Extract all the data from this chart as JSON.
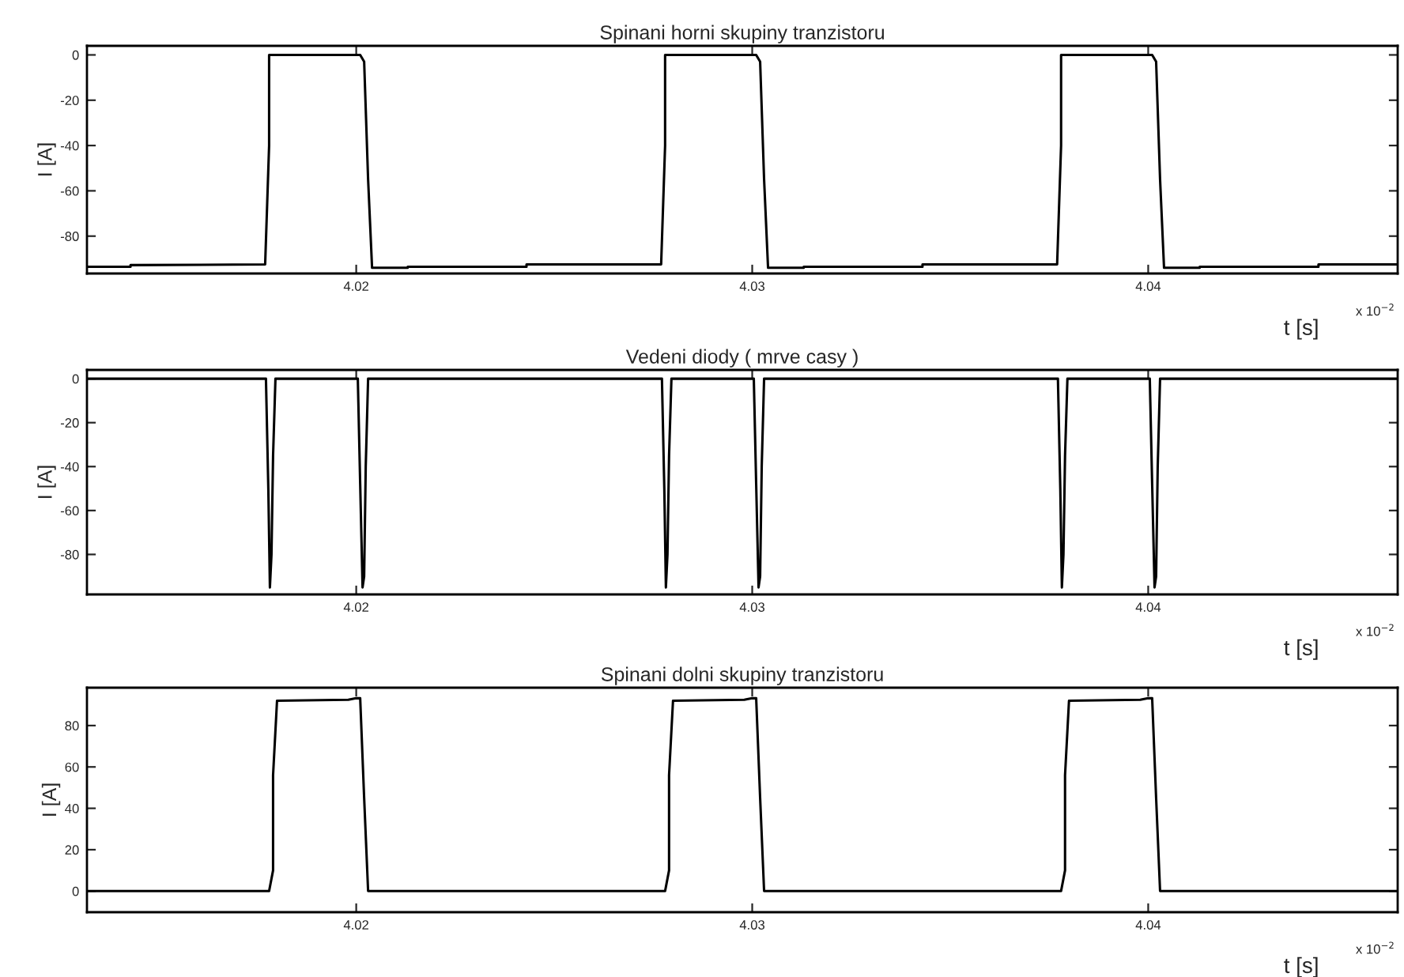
{
  "chart_data": [
    {
      "type": "line",
      "title": "Spinani horni skupiny tranzistoru",
      "xlabel": "t [s]",
      "ylabel": "I [A]",
      "annotations": [
        "x 10$^{−2}$"
      ],
      "xlim": [
        4.0132,
        4.0463
      ],
      "xticks": [
        4.02,
        4.03,
        4.04
      ],
      "ylim": [
        -96.5,
        4
      ],
      "yticks": [
        0,
        -20,
        -40,
        -60,
        -80
      ],
      "grid": false,
      "legend": false,
      "series": [
        {
          "color": "#000000",
          "x": [
            4.0132,
            4.0143,
            4.0143,
            4.0177,
            4.0178,
            4.0178,
            4.0201,
            4.0202,
            4.0203,
            4.0204,
            4.0213,
            4.0213,
            4.0243,
            4.0243,
            4.0277,
            4.0278,
            4.0278,
            4.0301,
            4.0302,
            4.0303,
            4.0304,
            4.0313,
            4.0313,
            4.0343,
            4.0343,
            4.0377,
            4.0378,
            4.0378,
            4.0401,
            4.0402,
            4.0403,
            4.0404,
            4.0413,
            4.0413,
            4.0443,
            4.0443,
            4.0463
          ],
          "values": [
            -93.5,
            -93.5,
            -92.8,
            -92.5,
            -40,
            0,
            0,
            -3,
            -55,
            -94,
            -94,
            -93.5,
            -93.5,
            -92.5,
            -92.5,
            -40,
            0,
            0,
            -3,
            -55,
            -94,
            -94,
            -93.5,
            -93.5,
            -92.5,
            -92.5,
            -40,
            0,
            0,
            -3,
            -55,
            -94,
            -94,
            -93.5,
            -93.5,
            -92.5,
            -92.5
          ]
        }
      ]
    },
    {
      "type": "line",
      "title": "Vedeni diody ( mrve casy )",
      "xlabel": "t [s]",
      "ylabel": "I [A]",
      "annotations": [
        "x 10$^{−2}$"
      ],
      "xlim": [
        4.0132,
        4.0463
      ],
      "xticks": [
        4.02,
        4.03,
        4.04
      ],
      "ylim": [
        -98.2,
        4
      ],
      "yticks": [
        0,
        -20,
        -40,
        -60,
        -80
      ],
      "grid": false,
      "legend": false,
      "series": [
        {
          "color": "#000000",
          "x": [
            4.0132,
            4.01772,
            4.01778,
            4.01782,
            4.01786,
            4.0179,
            4.01796,
            4.02004,
            4.0201,
            4.02016,
            4.0202,
            4.02024,
            4.0203,
            4.02772,
            4.02778,
            4.02782,
            4.02786,
            4.0279,
            4.02796,
            4.03004,
            4.0301,
            4.03016,
            4.0302,
            4.03024,
            4.0303,
            4.03772,
            4.03778,
            4.03782,
            4.03786,
            4.0379,
            4.03796,
            4.04004,
            4.0401,
            4.04016,
            4.0402,
            4.04024,
            4.0403,
            4.0463
          ],
          "values": [
            0,
            0,
            -50,
            -95,
            -80,
            -35,
            0,
            0,
            -48,
            -95,
            -90,
            -40,
            0,
            0,
            -50,
            -95,
            -80,
            -35,
            0,
            0,
            -48,
            -95,
            -90,
            -40,
            0,
            0,
            -50,
            -95,
            -80,
            -35,
            0,
            0,
            -48,
            -95,
            -90,
            -40,
            0,
            0
          ]
        }
      ]
    },
    {
      "type": "line",
      "title": "Spinani dolni skupiny tranzistoru",
      "xlabel": "t [s]",
      "ylabel": "I [A]",
      "annotations": [
        "x 10$^{−2}$"
      ],
      "xlim": [
        4.0132,
        4.0463
      ],
      "xticks": [
        4.02,
        4.03,
        4.04
      ],
      "ylim": [
        -10.2,
        98.3
      ],
      "yticks": [
        0,
        20,
        40,
        60,
        80
      ],
      "grid": false,
      "legend": false,
      "series": [
        {
          "color": "#000000",
          "x": [
            4.0132,
            4.0178,
            4.0179,
            4.0179,
            4.018,
            4.0198,
            4.02,
            4.0201,
            4.0202,
            4.0203,
            4.0278,
            4.0279,
            4.0279,
            4.028,
            4.0298,
            4.03,
            4.0301,
            4.0302,
            4.0303,
            4.0378,
            4.0379,
            4.0379,
            4.038,
            4.0398,
            4.04,
            4.0401,
            4.0402,
            4.0403,
            4.0463
          ],
          "values": [
            0,
            0,
            10,
            56,
            92,
            92.5,
            93.2,
            93.2,
            45,
            0,
            0,
            10,
            56,
            92,
            92.5,
            93.2,
            93.2,
            45,
            0,
            0,
            10,
            56,
            92,
            92.5,
            93.2,
            93.2,
            45,
            0,
            0
          ]
        }
      ]
    }
  ]
}
